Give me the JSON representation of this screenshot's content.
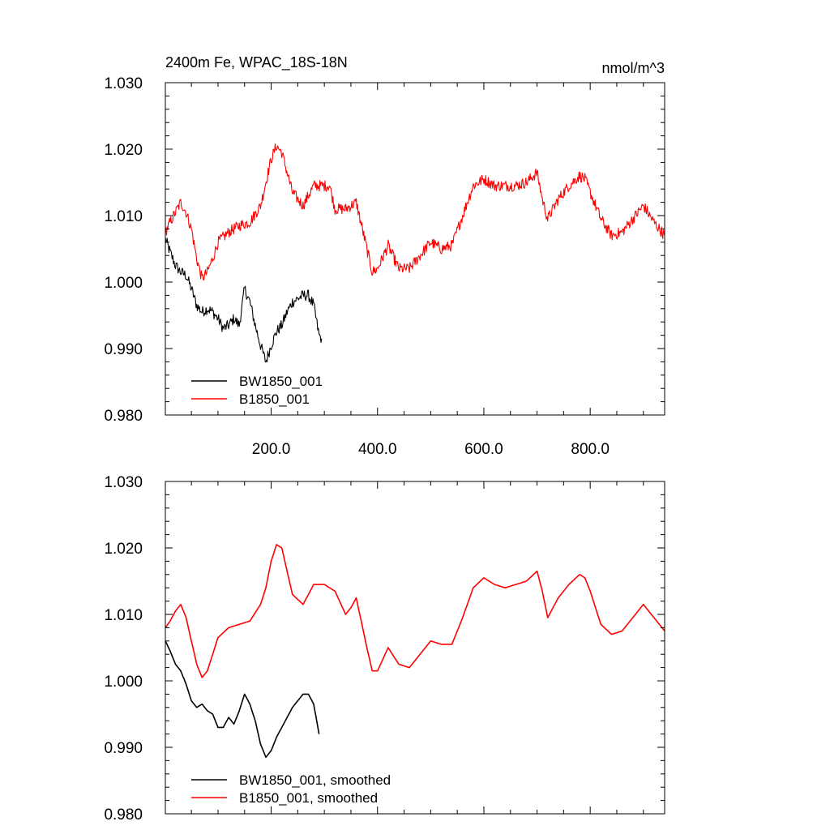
{
  "chart_data": [
    {
      "type": "line",
      "title": "2400m Fe, WPAC_18S-18N",
      "units": "nmol/m^3",
      "xlim": [
        1,
        940
      ],
      "ylim": [
        0.98,
        1.03
      ],
      "x_ticks": [
        200,
        400,
        600,
        800
      ],
      "x_tick_labels": [
        "200.0",
        "400.0",
        "600.0",
        "800.0"
      ],
      "y_ticks": [
        0.98,
        0.99,
        1.0,
        1.01,
        1.02,
        1.03
      ],
      "y_tick_labels": [
        "0.980",
        "0.990",
        "1.000",
        "1.010",
        "1.020",
        "1.030"
      ],
      "legend": [
        "BW1850_001",
        "B1850_001"
      ],
      "legend_position": "bottom-left",
      "series": [
        {
          "name": "BW1850_001",
          "color": "#000000",
          "x": [
            1,
            10,
            20,
            30,
            40,
            50,
            60,
            70,
            80,
            90,
            100,
            110,
            120,
            130,
            140,
            150,
            160,
            170,
            180,
            190,
            200,
            210,
            220,
            230,
            240,
            250,
            260,
            270,
            280,
            290,
            295
          ],
          "values": [
            1.0065,
            1.0045,
            1.0025,
            1.0015,
            1.001,
            0.999,
            0.9965,
            0.9955,
            0.996,
            0.9955,
            0.9945,
            0.993,
            0.9935,
            0.9945,
            0.9935,
            0.999,
            0.997,
            0.9935,
            0.9905,
            0.988,
            0.9905,
            0.9925,
            0.9935,
            0.9955,
            0.997,
            0.9975,
            0.998,
            0.998,
            0.9965,
            0.992,
            0.9915
          ]
        },
        {
          "name": "B1850_001",
          "color": "#ff0000",
          "x": [
            1,
            10,
            20,
            30,
            40,
            50,
            60,
            70,
            80,
            90,
            100,
            120,
            140,
            160,
            180,
            200,
            210,
            220,
            240,
            260,
            280,
            300,
            310,
            320,
            340,
            360,
            380,
            390,
            400,
            420,
            440,
            460,
            480,
            500,
            520,
            540,
            560,
            580,
            600,
            620,
            640,
            660,
            680,
            700,
            710,
            720,
            740,
            760,
            780,
            790,
            800,
            820,
            840,
            860,
            880,
            900,
            920,
            940
          ],
          "values": [
            1.0075,
            1.009,
            1.0105,
            1.012,
            1.0105,
            1.008,
            1.0035,
            1.0005,
            1.0015,
            1.0035,
            1.006,
            1.0075,
            1.0085,
            1.009,
            1.0115,
            1.0185,
            1.0205,
            1.0195,
            1.0135,
            1.0115,
            1.0145,
            1.0145,
            1.0145,
            1.011,
            1.011,
            1.012,
            1.005,
            1.0015,
            1.002,
            1.0055,
            1.002,
            1.002,
            1.004,
            1.006,
            1.005,
            1.0055,
            1.01,
            1.0145,
            1.0155,
            1.0145,
            1.0145,
            1.0145,
            1.015,
            1.0165,
            1.0125,
            1.0095,
            1.0125,
            1.0145,
            1.016,
            1.0155,
            1.0135,
            1.0095,
            1.007,
            1.0075,
            1.0095,
            1.0115,
            1.009,
            1.007
          ]
        }
      ]
    },
    {
      "type": "line",
      "title": "",
      "xlim": [
        1,
        940
      ],
      "ylim": [
        0.98,
        1.03
      ],
      "x_ticks": [
        200,
        400,
        600,
        800
      ],
      "y_ticks": [
        0.98,
        0.99,
        1.0,
        1.01,
        1.02,
        1.03
      ],
      "y_tick_labels": [
        "0.980",
        "0.990",
        "1.000",
        "1.010",
        "1.020",
        "1.030"
      ],
      "legend": [
        "BW1850_001, smoothed",
        "B1850_001, smoothed"
      ],
      "legend_position": "bottom-left",
      "series": [
        {
          "name": "BW1850_001, smoothed",
          "color": "#000000",
          "x": [
            1,
            10,
            20,
            30,
            40,
            50,
            60,
            70,
            80,
            90,
            100,
            110,
            120,
            130,
            140,
            150,
            160,
            170,
            180,
            190,
            200,
            210,
            220,
            230,
            240,
            250,
            260,
            270,
            280,
            290
          ],
          "values": [
            1.006,
            1.0045,
            1.0025,
            1.0015,
            0.9995,
            0.997,
            0.996,
            0.9965,
            0.9955,
            0.995,
            0.993,
            0.993,
            0.9945,
            0.9935,
            0.9955,
            0.998,
            0.9965,
            0.994,
            0.9905,
            0.9885,
            0.9895,
            0.9915,
            0.993,
            0.9945,
            0.996,
            0.997,
            0.998,
            0.998,
            0.9965,
            0.992
          ]
        },
        {
          "name": "B1850_001, smoothed",
          "color": "#ff0000",
          "x": [
            1,
            10,
            20,
            30,
            40,
            50,
            60,
            70,
            80,
            90,
            100,
            120,
            140,
            160,
            180,
            190,
            200,
            210,
            220,
            240,
            260,
            280,
            300,
            320,
            340,
            350,
            360,
            380,
            390,
            400,
            420,
            440,
            460,
            480,
            500,
            520,
            540,
            560,
            580,
            600,
            620,
            640,
            660,
            680,
            700,
            710,
            720,
            740,
            760,
            780,
            790,
            800,
            820,
            840,
            860,
            880,
            900,
            920,
            940
          ],
          "values": [
            1.008,
            1.009,
            1.0105,
            1.0115,
            1.0095,
            1.006,
            1.0025,
            1.0005,
            1.0015,
            1.004,
            1.0065,
            1.008,
            1.0085,
            1.009,
            1.0115,
            1.014,
            1.018,
            1.0205,
            1.02,
            1.013,
            1.0115,
            1.0145,
            1.0145,
            1.0135,
            1.01,
            1.011,
            1.0125,
            1.005,
            1.0015,
            1.0015,
            1.005,
            1.0025,
            1.002,
            1.004,
            1.006,
            1.0055,
            1.0055,
            1.0095,
            1.014,
            1.0155,
            1.0145,
            1.014,
            1.0145,
            1.015,
            1.0165,
            1.0135,
            1.0095,
            1.0125,
            1.0145,
            1.016,
            1.0155,
            1.0135,
            1.0085,
            1.007,
            1.0075,
            1.0095,
            1.0115,
            1.0095,
            1.0075
          ]
        }
      ]
    }
  ]
}
